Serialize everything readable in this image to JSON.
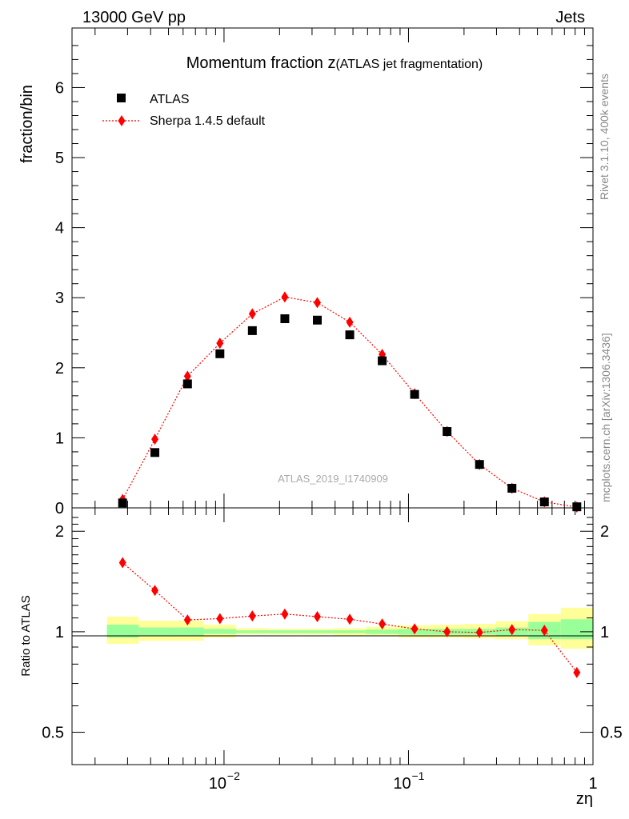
{
  "header": {
    "left": "13000 GeV pp",
    "right": "Jets"
  },
  "side_labels": {
    "rivet": "Rivet 3.1.10,  400k events",
    "mcplots": "mcplots.cern.ch [arXiv:1306.3436]"
  },
  "plot_title": {
    "main": "Momentum fraction z",
    "sub": "(ATLAS jet fragmentation)"
  },
  "watermark": "ATLAS_2019_I1740909",
  "colors": {
    "data": "#000000",
    "mc": "#ff0000",
    "band_inner": "#99ff99",
    "band_outer": "#ffff99"
  },
  "chart_data": [
    {
      "type": "scatter",
      "title": "Momentum fraction z (ATLAS jet fragmentation)",
      "xlabel": "zη",
      "ylabel": "fraction/bin",
      "xscale": "log",
      "xlim": [
        0.0015,
        1.0
      ],
      "ylim": [
        0,
        6.85
      ],
      "yticks": [
        "0",
        "1",
        "2",
        "3",
        "4",
        "5",
        "6"
      ],
      "xticks": [
        "10",
        "10",
        "1"
      ],
      "xtick_exponents": [
        "−2",
        "−1",
        ""
      ],
      "legend": {
        "position": "top-left",
        "data_label": "ATLAS",
        "mc_label": "Sherpa 1.4.5 default"
      },
      "x": [
        0.00282,
        0.00422,
        0.00634,
        0.0095,
        0.01424,
        0.02136,
        0.03204,
        0.04804,
        0.072,
        0.1079,
        0.1618,
        0.2426,
        0.3637,
        0.5452,
        0.8174
      ],
      "series": [
        {
          "name": "ATLAS",
          "values": [
            0.07,
            0.79,
            1.77,
            2.2,
            2.53,
            2.7,
            2.68,
            2.47,
            2.1,
            1.62,
            1.09,
            0.62,
            0.28,
            0.085,
            0.015
          ]
        },
        {
          "name": "Sherpa 1.4.5 default",
          "values": [
            0.12,
            0.98,
            1.88,
            2.35,
            2.77,
            3.01,
            2.93,
            2.65,
            2.19,
            1.63,
            1.09,
            0.62,
            0.28,
            0.086,
            0.011
          ]
        }
      ]
    },
    {
      "type": "scatter",
      "xlabel": "zη",
      "ylabel": "Ratio to ATLAS",
      "xscale": "log",
      "xlim": [
        0.0015,
        1.0
      ],
      "ylim": [
        0.4,
        2.35
      ],
      "yticks": [
        "0.5",
        "1",
        "2"
      ],
      "x": [
        0.00282,
        0.00422,
        0.00634,
        0.0095,
        0.01424,
        0.02136,
        0.03204,
        0.04804,
        0.072,
        0.1079,
        0.1618,
        0.2426,
        0.3637,
        0.5452,
        0.8174
      ],
      "series": [
        {
          "name": "Sherpa 1.4.5 default / ATLAS",
          "values": [
            1.61,
            1.33,
            1.085,
            1.095,
            1.115,
            1.13,
            1.11,
            1.09,
            1.055,
            1.02,
            1.0,
            0.995,
            1.015,
            1.01,
            0.755
          ]
        }
      ],
      "bands": {
        "x_edges": [
          0.00232,
          0.00345,
          0.00518,
          0.00776,
          0.01163,
          0.01744,
          0.0262,
          0.0393,
          0.0589,
          0.0883,
          0.1324,
          0.1985,
          0.2976,
          0.4462,
          0.6689,
          1.0
        ],
        "inner_lo": [
          0.96,
          0.975,
          0.975,
          0.985,
          0.99,
          0.99,
          0.99,
          0.99,
          0.985,
          0.98,
          0.98,
          0.98,
          0.975,
          0.95,
          0.95
        ],
        "inner_hi": [
          1.05,
          1.03,
          1.03,
          1.02,
          1.01,
          1.01,
          1.01,
          1.01,
          1.015,
          1.02,
          1.02,
          1.02,
          1.03,
          1.07,
          1.09
        ],
        "outer_lo": [
          0.92,
          0.94,
          0.94,
          0.96,
          0.98,
          0.98,
          0.98,
          0.975,
          0.97,
          0.96,
          0.96,
          0.955,
          0.95,
          0.91,
          0.89
        ],
        "outer_hi": [
          1.11,
          1.08,
          1.08,
          1.05,
          1.025,
          1.02,
          1.02,
          1.025,
          1.035,
          1.045,
          1.05,
          1.055,
          1.075,
          1.13,
          1.18
        ]
      }
    }
  ]
}
